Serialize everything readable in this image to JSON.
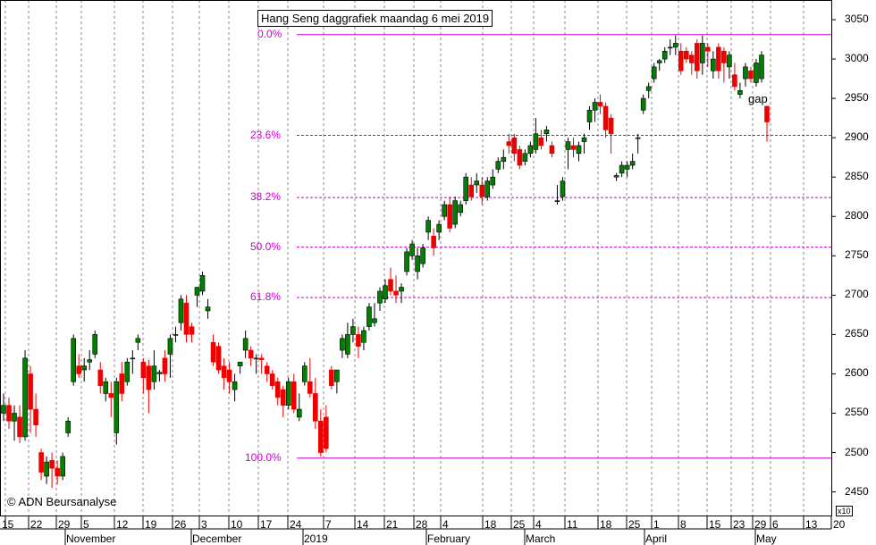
{
  "chart_data": {
    "type": "candlestick",
    "title": "Hang Seng daggrafiek maandag 6 mei 2019",
    "copyright": "© ADN Beursanalyse",
    "scale_note": "x10",
    "annotation": "gap",
    "ylim": [
      2420,
      3075
    ],
    "y_ticks": [
      2450,
      2500,
      2550,
      2600,
      2650,
      2700,
      2750,
      2800,
      2850,
      2900,
      2950,
      3000,
      3050
    ],
    "x_day_labels": [
      "15",
      "22",
      "29",
      "5",
      "12",
      "19",
      "26",
      "3",
      "10",
      "17",
      "24",
      "7",
      "14",
      "21",
      "28",
      "4",
      "18",
      "25",
      "4",
      "11",
      "18",
      "25",
      "1",
      "8",
      "15",
      "23",
      "29",
      "6",
      "13",
      "20"
    ],
    "x_month_labels": [
      "November",
      "December",
      "2019",
      "February",
      "March",
      "April",
      "May"
    ],
    "fibonacci": [
      {
        "label": "0.0%",
        "value": 3031
      },
      {
        "label": "23.6%",
        "value": 2903
      },
      {
        "label": "38.2%",
        "value": 2824
      },
      {
        "label": "50.0%",
        "value": 2761
      },
      {
        "label": "61.8%",
        "value": 2697
      },
      {
        "label": "100.0%",
        "value": 2493
      }
    ],
    "colors": {
      "up": "#008000",
      "down": "#ee0000",
      "fib": "#cc00cc",
      "grid": "#888888"
    },
    "candles": [
      [
        2550,
        2575,
        2540,
        2560
      ],
      [
        2560,
        2570,
        2530,
        2540
      ],
      [
        2540,
        2560,
        2515,
        2550
      ],
      [
        2545,
        2560,
        2512,
        2520
      ],
      [
        2520,
        2630,
        2515,
        2620
      ],
      [
        2600,
        2610,
        2525,
        2555
      ],
      [
        2555,
        2575,
        2520,
        2535
      ],
      [
        2500,
        2505,
        2465,
        2475
      ],
      [
        2470,
        2495,
        2460,
        2488
      ],
      [
        2490,
        2500,
        2455,
        2480
      ],
      [
        2480,
        2490,
        2460,
        2470
      ],
      [
        2470,
        2500,
        2465,
        2495
      ],
      [
        2525,
        2545,
        2520,
        2540
      ],
      [
        2590,
        2650,
        2585,
        2645
      ],
      [
        2610,
        2625,
        2595,
        2600
      ],
      [
        2605,
        2620,
        2590,
        2610
      ],
      [
        2615,
        2630,
        2605,
        2618
      ],
      [
        2625,
        2655,
        2620,
        2650
      ],
      [
        2605,
        2615,
        2575,
        2585
      ],
      [
        2575,
        2595,
        2565,
        2590
      ],
      [
        2575,
        2590,
        2545,
        2570
      ],
      [
        2525,
        2595,
        2510,
        2590
      ],
      [
        2600,
        2615,
        2565,
        2575
      ],
      [
        2590,
        2620,
        2585,
        2615
      ],
      [
        2620,
        2630,
        2600,
        2620
      ],
      [
        2640,
        2650,
        2630,
        2645
      ],
      [
        2615,
        2620,
        2575,
        2595
      ],
      [
        2610,
        2618,
        2550,
        2580
      ],
      [
        2590,
        2630,
        2580,
        2610
      ],
      [
        2600,
        2605,
        2590,
        2602
      ],
      [
        2620,
        2630,
        2590,
        2600
      ],
      [
        2625,
        2650,
        2595,
        2645
      ],
      [
        2650,
        2660,
        2640,
        2650
      ],
      [
        2665,
        2700,
        2655,
        2695
      ],
      [
        2690,
        2700,
        2640,
        2650
      ],
      [
        2660,
        2665,
        2640,
        2650
      ],
      [
        2700,
        2710,
        2685,
        2710
      ],
      [
        2705,
        2730,
        2700,
        2725
      ],
      [
        2680,
        2695,
        2670,
        2685
      ],
      [
        2640,
        2650,
        2610,
        2615
      ],
      [
        2635,
        2640,
        2600,
        2605
      ],
      [
        2610,
        2620,
        2580,
        2595
      ],
      [
        2605,
        2615,
        2575,
        2590
      ],
      [
        2580,
        2600,
        2565,
        2590
      ],
      [
        2610,
        2615,
        2600,
        2615
      ],
      [
        2630,
        2655,
        2620,
        2645
      ],
      [
        2630,
        2635,
        2610,
        2620
      ],
      [
        2620,
        2625,
        2600,
        2620
      ],
      [
        2620,
        2625,
        2600,
        2618
      ],
      [
        2610,
        2615,
        2590,
        2600
      ],
      [
        2600,
        2605,
        2580,
        2585
      ],
      [
        2590,
        2595,
        2560,
        2570
      ],
      [
        2580,
        2585,
        2545,
        2560
      ],
      [
        2560,
        2595,
        2555,
        2590
      ],
      [
        2590,
        2600,
        2550,
        2555
      ],
      [
        2545,
        2575,
        2540,
        2555
      ],
      [
        2590,
        2615,
        2585,
        2610
      ],
      [
        2590,
        2620,
        2570,
        2575
      ],
      [
        2575,
        2595,
        2530,
        2540
      ],
      [
        2540,
        2555,
        2495,
        2500
      ],
      [
        2545,
        2560,
        2500,
        2505
      ],
      [
        2605,
        2610,
        2580,
        2585
      ],
      [
        2590,
        2605,
        2575,
        2605
      ],
      [
        2630,
        2650,
        2620,
        2645
      ],
      [
        2625,
        2665,
        2620,
        2650
      ],
      [
        2650,
        2670,
        2640,
        2660
      ],
      [
        2650,
        2660,
        2620,
        2635
      ],
      [
        2640,
        2660,
        2630,
        2655
      ],
      [
        2660,
        2690,
        2655,
        2685
      ],
      [
        2665,
        2690,
        2660,
        2670
      ],
      [
        2690,
        2710,
        2680,
        2705
      ],
      [
        2695,
        2720,
        2690,
        2712
      ],
      [
        2720,
        2735,
        2700,
        2705
      ],
      [
        2705,
        2725,
        2690,
        2700
      ],
      [
        2705,
        2715,
        2690,
        2710
      ],
      [
        2730,
        2760,
        2725,
        2755
      ],
      [
        2750,
        2770,
        2745,
        2765
      ],
      [
        2730,
        2760,
        2720,
        2750
      ],
      [
        2740,
        2765,
        2735,
        2760
      ],
      [
        2780,
        2800,
        2770,
        2795
      ],
      [
        2775,
        2785,
        2750,
        2760
      ],
      [
        2780,
        2795,
        2770,
        2790
      ],
      [
        2800,
        2820,
        2795,
        2815
      ],
      [
        2815,
        2825,
        2780,
        2785
      ],
      [
        2790,
        2825,
        2785,
        2820
      ],
      [
        2805,
        2820,
        2800,
        2815
      ],
      [
        2820,
        2855,
        2815,
        2850
      ],
      [
        2840,
        2850,
        2820,
        2825
      ],
      [
        2840,
        2855,
        2830,
        2845
      ],
      [
        2840,
        2850,
        2815,
        2825
      ],
      [
        2825,
        2850,
        2820,
        2845
      ],
      [
        2840,
        2860,
        2835,
        2850
      ],
      [
        2860,
        2875,
        2855,
        2870
      ],
      [
        2870,
        2885,
        2860,
        2875
      ],
      [
        2895,
        2905,
        2880,
        2890
      ],
      [
        2900,
        2905,
        2870,
        2880
      ],
      [
        2885,
        2890,
        2860,
        2865
      ],
      [
        2870,
        2885,
        2865,
        2880
      ],
      [
        2880,
        2895,
        2875,
        2890
      ],
      [
        2885,
        2925,
        2880,
        2905
      ],
      [
        2900,
        2910,
        2885,
        2890
      ],
      [
        2905,
        2915,
        2895,
        2910
      ],
      [
        2890,
        2895,
        2875,
        2880
      ],
      [
        2820,
        2840,
        2815,
        2820
      ],
      [
        2825,
        2850,
        2820,
        2845
      ],
      [
        2885,
        2900,
        2860,
        2895
      ],
      [
        2890,
        2900,
        2875,
        2885
      ],
      [
        2880,
        2895,
        2870,
        2890
      ],
      [
        2895,
        2905,
        2880,
        2900
      ],
      [
        2920,
        2940,
        2910,
        2935
      ],
      [
        2935,
        2950,
        2920,
        2945
      ],
      [
        2945,
        2955,
        2930,
        2940
      ],
      [
        2940,
        2945,
        2900,
        2910
      ],
      [
        2925,
        2930,
        2880,
        2905
      ],
      [
        2850,
        2855,
        2845,
        2852
      ],
      [
        2855,
        2870,
        2850,
        2865
      ],
      [
        2860,
        2870,
        2850,
        2865
      ],
      [
        2865,
        2880,
        2860,
        2870
      ],
      [
        2900,
        2905,
        2880,
        2900
      ],
      [
        2935,
        2955,
        2930,
        2950
      ],
      [
        2960,
        2970,
        2950,
        2965
      ],
      [
        2975,
        2995,
        2970,
        2990
      ],
      [
        2995,
        3000,
        2985,
        2998
      ],
      [
        3000,
        3015,
        2995,
        3010
      ],
      [
        3015,
        3025,
        3005,
        3015
      ],
      [
        3015,
        3030,
        3005,
        3020
      ],
      [
        3010,
        3020,
        2980,
        2985
      ],
      [
        3010,
        3015,
        2995,
        3000
      ],
      [
        3005,
        3010,
        2980,
        2995
      ],
      [
        3020,
        3025,
        2975,
        2985
      ],
      [
        2995,
        3030,
        2980,
        3020
      ],
      [
        3015,
        3020,
        2990,
        3010
      ],
      [
        2985,
        3010,
        2975,
        3000
      ],
      [
        3015,
        3020,
        2975,
        2985
      ],
      [
        3010,
        3015,
        2970,
        2995
      ],
      [
        2990,
        3010,
        2975,
        3005
      ],
      [
        2980,
        2995,
        2960,
        2965
      ],
      [
        2955,
        2970,
        2950,
        2960
      ],
      [
        2975,
        2995,
        2965,
        2990
      ],
      [
        2985,
        2990,
        2970,
        2975
      ],
      [
        2970,
        3000,
        2965,
        2995
      ],
      [
        2975,
        3010,
        2970,
        3005
      ],
      [
        2940,
        2940,
        2895,
        2920
      ]
    ]
  }
}
